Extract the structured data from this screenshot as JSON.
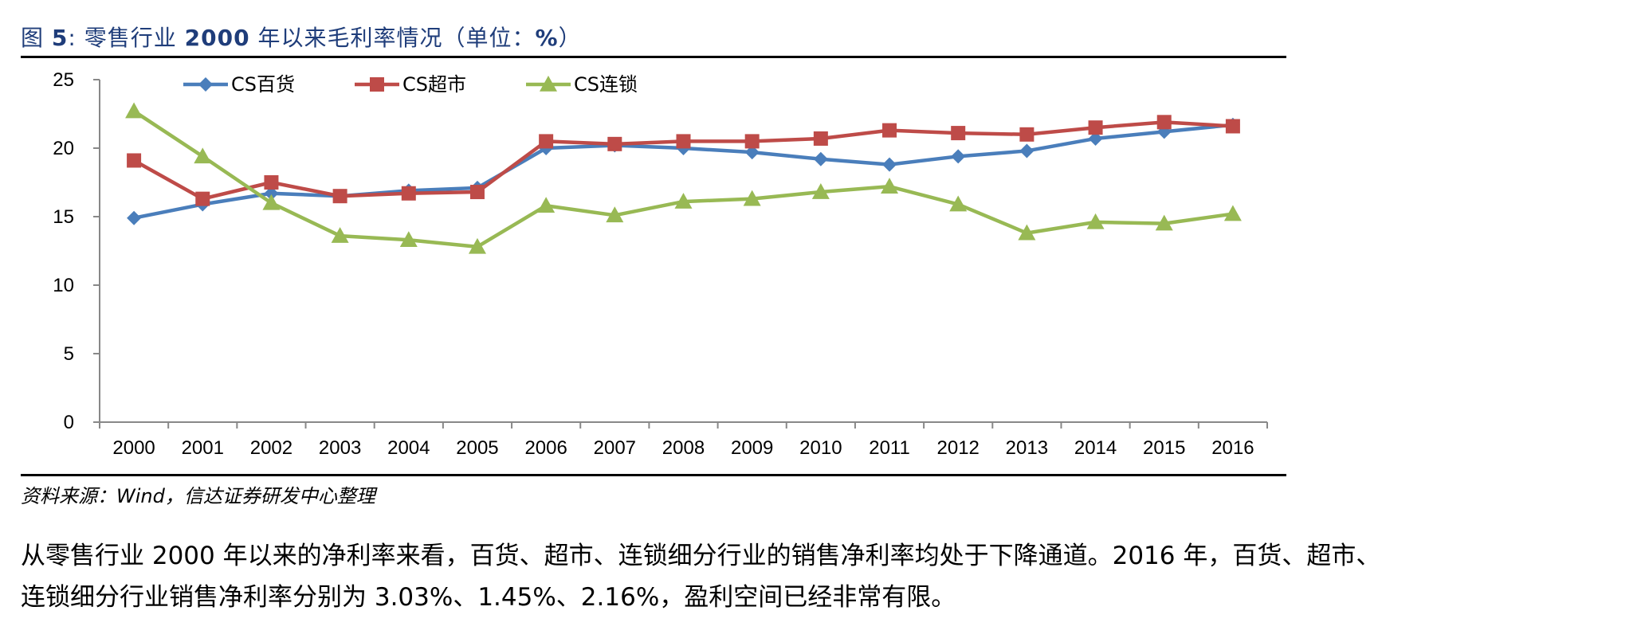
{
  "figure_title": {
    "prefix": "图",
    "number": "5",
    "text_a": "零售行业",
    "year": "2000",
    "text_b": "年以来毛利率情况（单位：",
    "unit": "%",
    "suffix": "）"
  },
  "source_note": "资料来源：Wind，信达证券研发中心整理",
  "paragraph": {
    "line1": "从零售行业 2000 年以来的净利率来看，百货、超市、连锁细分行业的销售净利率均处于下降通道。2016 年，百货、超市、",
    "line2": "连锁细分行业销售净利率分别为 3.03%、1.45%、2.16%，盈利空间已经非常有限。"
  },
  "chart_data": {
    "type": "line",
    "title": "",
    "xlabel": "",
    "ylabel": "",
    "x": [
      "2000",
      "2001",
      "2002",
      "2003",
      "2004",
      "2005",
      "2006",
      "2007",
      "2008",
      "2009",
      "2010",
      "2011",
      "2012",
      "2013",
      "2014",
      "2015",
      "2016"
    ],
    "ylim": [
      0,
      25
    ],
    "yticks": [
      "0",
      "5",
      "10",
      "15",
      "20",
      "25"
    ],
    "grid": false,
    "legend_position": "top-left",
    "series": [
      {
        "name": "CS百货",
        "color": "#4a7ebb",
        "marker": "diamond",
        "values": [
          14.9,
          15.9,
          16.7,
          16.5,
          16.9,
          17.1,
          20.0,
          20.2,
          20.0,
          19.7,
          19.2,
          18.8,
          19.4,
          19.8,
          20.7,
          21.2,
          21.7
        ]
      },
      {
        "name": "CS超市",
        "color": "#be4b48",
        "marker": "square",
        "values": [
          19.1,
          16.3,
          17.5,
          16.5,
          16.7,
          16.8,
          20.5,
          20.3,
          20.5,
          20.5,
          20.7,
          21.3,
          21.1,
          21.0,
          21.5,
          21.9,
          21.6
        ]
      },
      {
        "name": "CS连锁",
        "color": "#98b954",
        "marker": "triangle",
        "values": [
          22.7,
          19.4,
          16.0,
          13.6,
          13.3,
          12.8,
          15.8,
          15.1,
          16.1,
          16.3,
          16.8,
          17.2,
          15.9,
          13.8,
          14.6,
          14.5,
          15.2
        ]
      }
    ]
  }
}
